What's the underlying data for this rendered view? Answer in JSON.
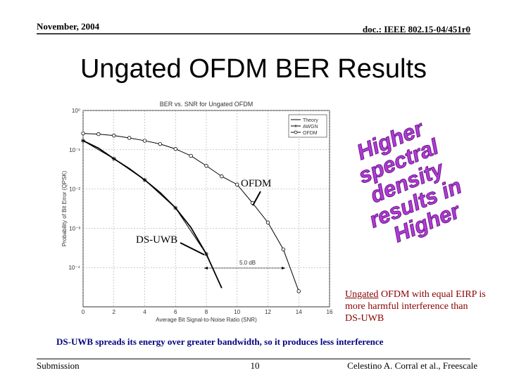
{
  "header": {
    "date": "November, 2004",
    "doc": "doc.: IEEE 802.15-04/451r0"
  },
  "title": "Ungated OFDM BER Results",
  "chart_data": {
    "type": "line",
    "title": "BER vs. SNR for Ungated OFDM",
    "x_label": "Average Bit Signal-to-Noise Ratio (SNR)",
    "y_label": "Probability of Bit Error (QPSK)",
    "xlim": [
      0,
      16
    ],
    "xticks": [
      0,
      2,
      4,
      6,
      8,
      10,
      12,
      14,
      16
    ],
    "ylim": [
      1e-05,
      1
    ],
    "log_y": true,
    "yticks": [
      {
        "value": 1,
        "label": "10⁰"
      },
      {
        "value": 0.1,
        "label": "10⁻¹"
      },
      {
        "value": 0.01,
        "label": "10⁻²"
      },
      {
        "value": 0.001,
        "label": "10⁻³"
      },
      {
        "value": 0.0001,
        "label": "10⁻⁴"
      }
    ],
    "grid": true,
    "legend": "upper right",
    "series": [
      {
        "name": "Theory",
        "color": "#000000",
        "marker": "none",
        "x": [
          0,
          1,
          2,
          3,
          4,
          5,
          6,
          7,
          8,
          9
        ],
        "values": [
          0.17,
          0.11,
          0.059,
          0.033,
          0.017,
          0.0081,
          0.0033,
          0.00105,
          0.00022,
          3e-05
        ]
      },
      {
        "name": "AWGN",
        "color": "#000000",
        "marker": "asterisk",
        "x": [
          0,
          2,
          4,
          6,
          8
        ],
        "values": [
          0.17,
          0.059,
          0.017,
          0.0033,
          0.00022
        ]
      },
      {
        "name": "OFDM",
        "color": "#000000",
        "marker": "circle",
        "x": [
          0,
          1,
          2,
          3,
          4,
          5,
          6,
          7,
          8,
          9,
          10,
          11,
          12,
          13,
          14
        ],
        "values": [
          0.26,
          0.25,
          0.23,
          0.2,
          0.17,
          0.14,
          0.105,
          0.07,
          0.039,
          0.021,
          0.013,
          0.0044,
          0.0014,
          0.00029,
          2.5e-05
        ]
      }
    ],
    "annotations": {
      "gap": "5.0 dB",
      "ofdm": "OFDM",
      "dsuwb": "DS-UWB"
    }
  },
  "wordart": [
    "Higher",
    "spectral",
    "density",
    "results in",
    "Higher"
  ],
  "note": {
    "underlined": "Ungated",
    "rest": " OFDM with equal EIRP is more harmful interference than DS-UWB"
  },
  "summary": "DS-UWB spreads its energy over greater bandwidth, so it produces less interference",
  "footer": {
    "left": "Submission",
    "page": "10",
    "right": "Celestino A. Corral et al., Freescale"
  }
}
